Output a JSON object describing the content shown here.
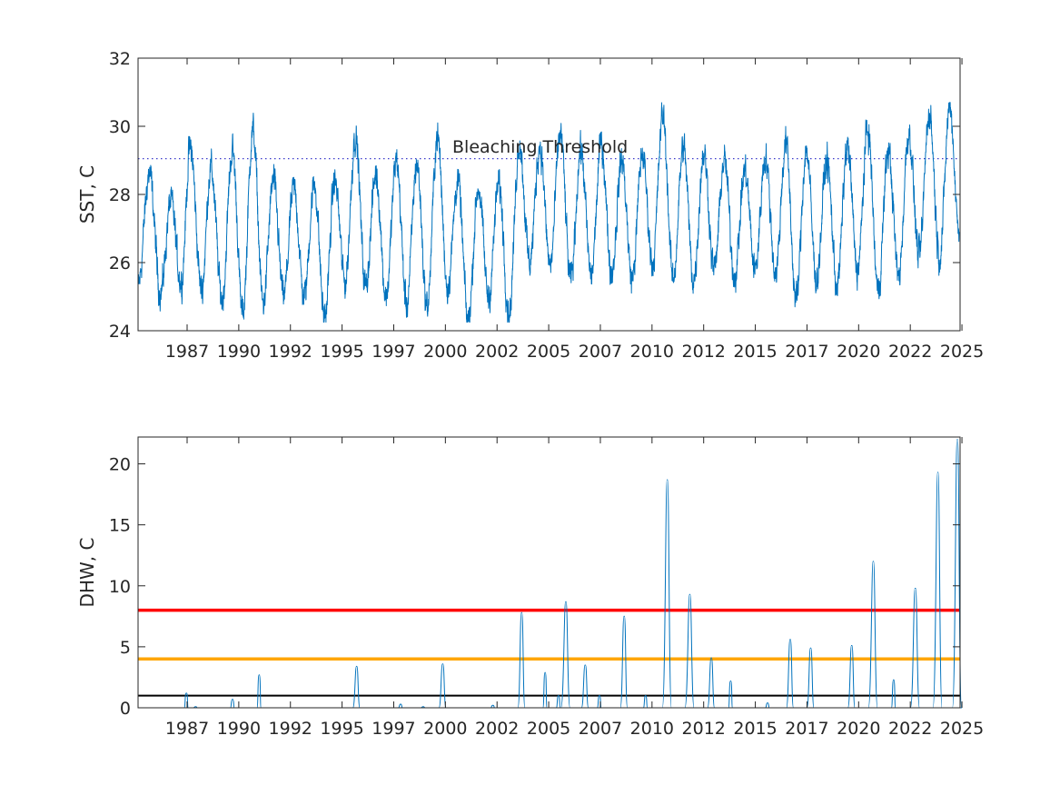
{
  "chart_data": [
    {
      "type": "line",
      "ylabel": "SST, C",
      "ylim": [
        24,
        32
      ],
      "yticks": [
        24,
        26,
        28,
        30,
        32
      ],
      "xlim": [
        1985.0,
        2025.1
      ],
      "xtick_labels": [
        "1987",
        "1990",
        "1992",
        "1995",
        "1997",
        "2000",
        "2002",
        "2005",
        "2007",
        "2010",
        "2012",
        "2015",
        "2017",
        "2020",
        "2022",
        "2025"
      ],
      "threshold": {
        "label": "Bleaching Threshold",
        "value": 29.05,
        "style": "dotted",
        "color": "#3a3acb"
      },
      "series": [
        {
          "color": "#0072BD",
          "seasonal_extremes": [
            [
              1985.0,
              25.3
            ],
            [
              1985.55,
              28.6
            ],
            [
              1986.1,
              25.1
            ],
            [
              1986.6,
              27.8
            ],
            [
              1987.1,
              25.4
            ],
            [
              1987.55,
              29.4
            ],
            [
              1988.1,
              25.2
            ],
            [
              1988.55,
              28.8
            ],
            [
              1989.1,
              24.9
            ],
            [
              1989.6,
              29.3
            ],
            [
              1990.1,
              24.5
            ],
            [
              1990.6,
              29.9
            ],
            [
              1991.1,
              24.8
            ],
            [
              1991.6,
              28.4
            ],
            [
              1992.1,
              25.0
            ],
            [
              1992.6,
              28.2
            ],
            [
              1993.1,
              25.0
            ],
            [
              1993.6,
              28.3
            ],
            [
              1994.1,
              24.4
            ],
            [
              1994.6,
              28.4
            ],
            [
              1995.1,
              25.4
            ],
            [
              1995.6,
              29.7
            ],
            [
              1996.1,
              25.3
            ],
            [
              1996.6,
              28.6
            ],
            [
              1997.1,
              25.0
            ],
            [
              1997.6,
              29.0
            ],
            [
              1998.1,
              24.8
            ],
            [
              1998.6,
              28.9
            ],
            [
              1999.1,
              24.7
            ],
            [
              1999.6,
              29.7
            ],
            [
              2000.1,
              25.3
            ],
            [
              2000.6,
              28.4
            ],
            [
              2001.1,
              24.3
            ],
            [
              2001.6,
              28.2
            ],
            [
              2002.1,
              25.0
            ],
            [
              2002.6,
              28.3
            ],
            [
              2003.1,
              24.5
            ],
            [
              2003.6,
              29.5
            ],
            [
              2004.1,
              26.0
            ],
            [
              2004.6,
              29.4
            ],
            [
              2005.1,
              25.9
            ],
            [
              2005.6,
              29.8
            ],
            [
              2006.1,
              25.5
            ],
            [
              2006.6,
              29.3
            ],
            [
              2007.1,
              25.6
            ],
            [
              2007.6,
              29.5
            ],
            [
              2008.1,
              25.7
            ],
            [
              2008.6,
              29.0
            ],
            [
              2009.1,
              25.5
            ],
            [
              2009.6,
              29.2
            ],
            [
              2010.1,
              26.0
            ],
            [
              2010.6,
              30.3
            ],
            [
              2011.1,
              25.5
            ],
            [
              2011.6,
              29.4
            ],
            [
              2012.1,
              25.5
            ],
            [
              2012.6,
              29.2
            ],
            [
              2013.1,
              25.8
            ],
            [
              2013.6,
              29.0
            ],
            [
              2014.1,
              25.6
            ],
            [
              2014.6,
              28.7
            ],
            [
              2015.1,
              25.8
            ],
            [
              2015.6,
              29.1
            ],
            [
              2016.1,
              25.7
            ],
            [
              2016.6,
              29.5
            ],
            [
              2017.1,
              24.9
            ],
            [
              2017.6,
              29.3
            ],
            [
              2018.1,
              25.5
            ],
            [
              2018.6,
              29.0
            ],
            [
              2019.1,
              25.3
            ],
            [
              2019.6,
              29.4
            ],
            [
              2020.1,
              25.8
            ],
            [
              2020.6,
              29.9
            ],
            [
              2021.1,
              25.2
            ],
            [
              2021.6,
              29.3
            ],
            [
              2022.1,
              25.6
            ],
            [
              2022.6,
              29.8
            ],
            [
              2023.1,
              26.2
            ],
            [
              2023.6,
              30.4
            ],
            [
              2024.1,
              26.2
            ],
            [
              2024.6,
              30.6
            ],
            [
              2025.05,
              26.9
            ]
          ]
        }
      ]
    },
    {
      "type": "line",
      "ylabel": "DHW, C",
      "ylim": [
        0,
        22.2
      ],
      "yticks": [
        0,
        5,
        10,
        15,
        20
      ],
      "xlim": [
        1985.0,
        2025.1
      ],
      "xtick_labels": [
        "1987",
        "1990",
        "1992",
        "1995",
        "1997",
        "2000",
        "2002",
        "2005",
        "2007",
        "2010",
        "2012",
        "2015",
        "2017",
        "2020",
        "2022",
        "2025"
      ],
      "reference_lines": [
        {
          "value": 8,
          "color": "#ff0000"
        },
        {
          "value": 4,
          "color": "#ffa500"
        },
        {
          "value": 1,
          "color": "#000000"
        }
      ],
      "series": [
        {
          "color": "#0072BD",
          "peaks": [
            [
              1987.35,
              1.2
            ],
            [
              1987.8,
              0.1
            ],
            [
              1989.6,
              0.7
            ],
            [
              1990.9,
              2.7
            ],
            [
              1995.65,
              3.4
            ],
            [
              1997.8,
              0.3
            ],
            [
              1998.9,
              0.1
            ],
            [
              1999.85,
              3.6
            ],
            [
              2002.3,
              0.2
            ],
            [
              2003.7,
              7.8
            ],
            [
              2004.85,
              2.9
            ],
            [
              2005.5,
              1.0
            ],
            [
              2005.85,
              8.7
            ],
            [
              2006.8,
              3.5
            ],
            [
              2007.5,
              1.0
            ],
            [
              2008.7,
              7.5
            ],
            [
              2009.75,
              1.0
            ],
            [
              2010.8,
              18.7
            ],
            [
              2011.9,
              9.3
            ],
            [
              2012.95,
              4.1
            ],
            [
              2013.9,
              2.2
            ],
            [
              2015.7,
              0.4
            ],
            [
              2016.8,
              5.6
            ],
            [
              2017.8,
              4.9
            ],
            [
              2019.8,
              5.1
            ],
            [
              2020.85,
              12.0
            ],
            [
              2021.85,
              2.3
            ],
            [
              2022.9,
              9.8
            ],
            [
              2024.0,
              19.3
            ],
            [
              2024.95,
              22.0
            ]
          ]
        }
      ]
    }
  ]
}
